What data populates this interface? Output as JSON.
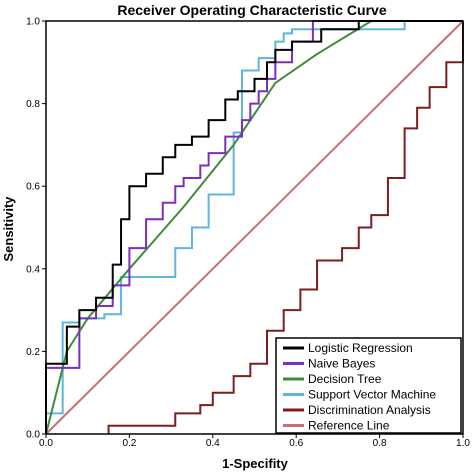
{
  "chart_data": {
    "type": "line",
    "title": "Receiver Operating Characteristic Curve",
    "xlabel": "1-Specifity",
    "ylabel": "Sensitivity",
    "xlim": [
      0,
      1
    ],
    "ylim": [
      0,
      1
    ],
    "xticks": [
      "0.0",
      "0.2",
      "0.4",
      "0.6",
      "0.8",
      "1.0"
    ],
    "yticks": [
      "0.0",
      "0.2",
      "0.4",
      "0.6",
      "0.8",
      "1.0"
    ],
    "grid": false,
    "legend": "bottom-right",
    "series": [
      {
        "name": "Logistic Regression",
        "color": "#000000",
        "step": true,
        "points": [
          [
            0,
            0
          ],
          [
            0,
            0.17
          ],
          [
            0.05,
            0.17
          ],
          [
            0.05,
            0.26
          ],
          [
            0.08,
            0.26
          ],
          [
            0.08,
            0.3
          ],
          [
            0.12,
            0.3
          ],
          [
            0.12,
            0.33
          ],
          [
            0.16,
            0.33
          ],
          [
            0.16,
            0.41
          ],
          [
            0.18,
            0.41
          ],
          [
            0.18,
            0.52
          ],
          [
            0.2,
            0.52
          ],
          [
            0.2,
            0.6
          ],
          [
            0.24,
            0.6
          ],
          [
            0.24,
            0.63
          ],
          [
            0.28,
            0.63
          ],
          [
            0.28,
            0.67
          ],
          [
            0.31,
            0.67
          ],
          [
            0.31,
            0.7
          ],
          [
            0.35,
            0.7
          ],
          [
            0.35,
            0.72
          ],
          [
            0.39,
            0.72
          ],
          [
            0.39,
            0.76
          ],
          [
            0.43,
            0.76
          ],
          [
            0.43,
            0.81
          ],
          [
            0.46,
            0.81
          ],
          [
            0.46,
            0.83
          ],
          [
            0.5,
            0.83
          ],
          [
            0.5,
            0.86
          ],
          [
            0.53,
            0.86
          ],
          [
            0.53,
            0.9
          ],
          [
            0.55,
            0.9
          ],
          [
            0.55,
            0.93
          ],
          [
            0.59,
            0.93
          ],
          [
            0.59,
            0.95
          ],
          [
            0.66,
            0.95
          ],
          [
            0.66,
            0.98
          ],
          [
            0.75,
            0.98
          ],
          [
            0.75,
            1.0
          ],
          [
            1.0,
            1.0
          ]
        ]
      },
      {
        "name": "Naive Bayes",
        "color": "#7b2fbe",
        "step": true,
        "points": [
          [
            0,
            0
          ],
          [
            0,
            0.16
          ],
          [
            0.08,
            0.16
          ],
          [
            0.08,
            0.28
          ],
          [
            0.12,
            0.28
          ],
          [
            0.12,
            0.31
          ],
          [
            0.16,
            0.31
          ],
          [
            0.16,
            0.36
          ],
          [
            0.2,
            0.36
          ],
          [
            0.2,
            0.45
          ],
          [
            0.24,
            0.45
          ],
          [
            0.24,
            0.52
          ],
          [
            0.28,
            0.52
          ],
          [
            0.28,
            0.56
          ],
          [
            0.31,
            0.56
          ],
          [
            0.31,
            0.6
          ],
          [
            0.33,
            0.6
          ],
          [
            0.33,
            0.62
          ],
          [
            0.37,
            0.62
          ],
          [
            0.37,
            0.65
          ],
          [
            0.39,
            0.65
          ],
          [
            0.39,
            0.68
          ],
          [
            0.43,
            0.68
          ],
          [
            0.43,
            0.72
          ],
          [
            0.47,
            0.72
          ],
          [
            0.47,
            0.76
          ],
          [
            0.49,
            0.76
          ],
          [
            0.49,
            0.8
          ],
          [
            0.51,
            0.8
          ],
          [
            0.51,
            0.83
          ],
          [
            0.53,
            0.83
          ],
          [
            0.53,
            0.86
          ],
          [
            0.55,
            0.86
          ],
          [
            0.55,
            0.9
          ],
          [
            0.59,
            0.9
          ],
          [
            0.59,
            0.95
          ],
          [
            0.64,
            0.95
          ],
          [
            0.64,
            1.0
          ],
          [
            1.0,
            1.0
          ]
        ]
      },
      {
        "name": "Decision Tree",
        "color": "#3c8c3c",
        "step": false,
        "points": [
          [
            0,
            0
          ],
          [
            0.05,
            0.2
          ],
          [
            0.1,
            0.28
          ],
          [
            0.2,
            0.4
          ],
          [
            0.33,
            0.55
          ],
          [
            0.45,
            0.7
          ],
          [
            0.55,
            0.85
          ],
          [
            0.65,
            0.92
          ],
          [
            0.78,
            1.0
          ],
          [
            1.0,
            1.0
          ]
        ]
      },
      {
        "name": "Support Vector Machine",
        "color": "#5fb5dc",
        "step": true,
        "points": [
          [
            0,
            0
          ],
          [
            0,
            0.05
          ],
          [
            0.04,
            0.05
          ],
          [
            0.04,
            0.27
          ],
          [
            0.08,
            0.27
          ],
          [
            0.08,
            0.28
          ],
          [
            0.14,
            0.28
          ],
          [
            0.14,
            0.29
          ],
          [
            0.18,
            0.29
          ],
          [
            0.18,
            0.38
          ],
          [
            0.31,
            0.38
          ],
          [
            0.31,
            0.45
          ],
          [
            0.35,
            0.45
          ],
          [
            0.35,
            0.5
          ],
          [
            0.39,
            0.5
          ],
          [
            0.39,
            0.58
          ],
          [
            0.45,
            0.58
          ],
          [
            0.45,
            0.73
          ],
          [
            0.47,
            0.73
          ],
          [
            0.47,
            0.88
          ],
          [
            0.51,
            0.88
          ],
          [
            0.51,
            0.91
          ],
          [
            0.55,
            0.91
          ],
          [
            0.55,
            0.95
          ],
          [
            0.57,
            0.95
          ],
          [
            0.57,
            0.97
          ],
          [
            0.59,
            0.97
          ],
          [
            0.59,
            0.98
          ],
          [
            0.86,
            0.98
          ],
          [
            0.86,
            1.0
          ],
          [
            1.0,
            1.0
          ]
        ]
      },
      {
        "name": "Discrimination Analysis",
        "color": "#7a1e1e",
        "step": true,
        "points": [
          [
            0.15,
            0
          ],
          [
            0.15,
            0.02
          ],
          [
            0.31,
            0.02
          ],
          [
            0.31,
            0.05
          ],
          [
            0.37,
            0.05
          ],
          [
            0.37,
            0.07
          ],
          [
            0.4,
            0.07
          ],
          [
            0.4,
            0.1
          ],
          [
            0.45,
            0.1
          ],
          [
            0.45,
            0.14
          ],
          [
            0.49,
            0.14
          ],
          [
            0.49,
            0.17
          ],
          [
            0.53,
            0.17
          ],
          [
            0.53,
            0.25
          ],
          [
            0.57,
            0.25
          ],
          [
            0.57,
            0.3
          ],
          [
            0.61,
            0.3
          ],
          [
            0.61,
            0.35
          ],
          [
            0.65,
            0.35
          ],
          [
            0.65,
            0.42
          ],
          [
            0.71,
            0.42
          ],
          [
            0.71,
            0.45
          ],
          [
            0.75,
            0.45
          ],
          [
            0.75,
            0.5
          ],
          [
            0.78,
            0.5
          ],
          [
            0.78,
            0.53
          ],
          [
            0.82,
            0.53
          ],
          [
            0.82,
            0.62
          ],
          [
            0.86,
            0.62
          ],
          [
            0.86,
            0.74
          ],
          [
            0.89,
            0.74
          ],
          [
            0.89,
            0.79
          ],
          [
            0.92,
            0.79
          ],
          [
            0.92,
            0.84
          ],
          [
            0.96,
            0.84
          ],
          [
            0.96,
            0.9
          ],
          [
            1.0,
            0.9
          ],
          [
            1.0,
            1.0
          ]
        ]
      },
      {
        "name": "Reference Line",
        "color": "#c87070",
        "step": false,
        "points": [
          [
            0,
            0
          ],
          [
            1,
            1
          ]
        ]
      }
    ]
  }
}
